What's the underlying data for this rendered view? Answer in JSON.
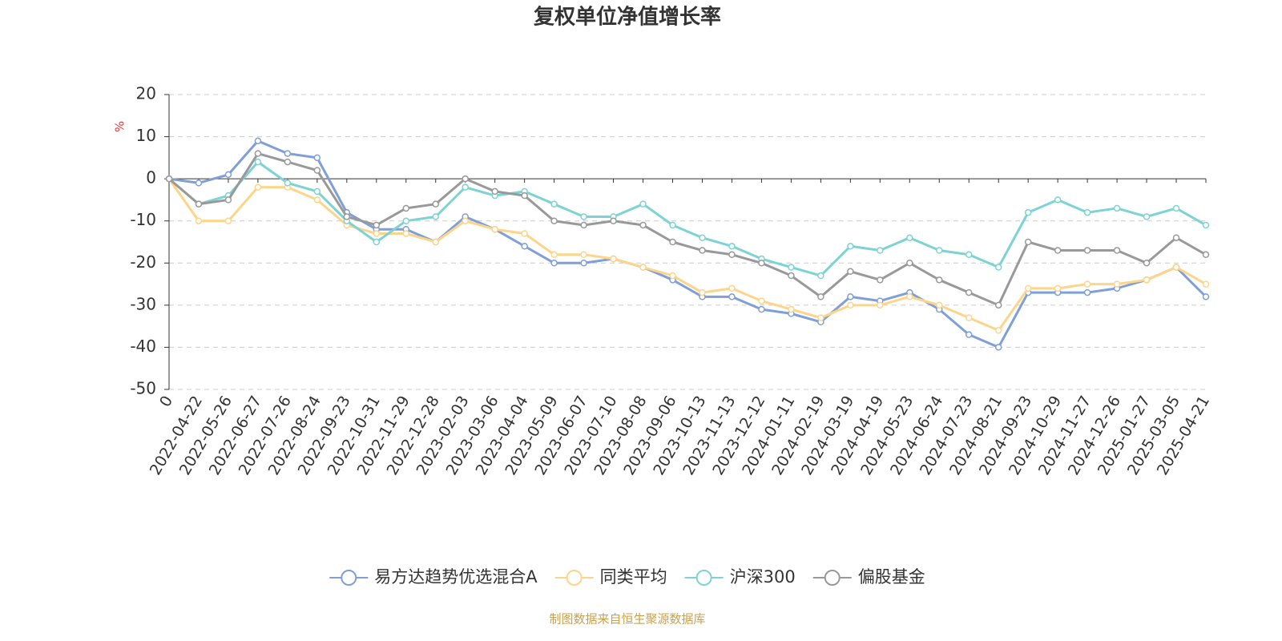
{
  "chart_data": {
    "type": "line",
    "title": "复权单位净值增长率",
    "y_label": "%",
    "source": "制图数据来自恒生聚源数据库",
    "categories": [
      "0",
      "2022-04-22",
      "2022-05-26",
      "2022-06-27",
      "2022-07-26",
      "2022-08-24",
      "2022-09-23",
      "2022-10-31",
      "2022-11-29",
      "2022-12-28",
      "2023-02-03",
      "2023-03-06",
      "2023-04-04",
      "2023-05-09",
      "2023-06-07",
      "2023-07-10",
      "2023-08-08",
      "2023-09-06",
      "2023-10-13",
      "2023-11-13",
      "2023-12-12",
      "2024-01-11",
      "2024-02-19",
      "2024-03-19",
      "2024-04-19",
      "2024-05-23",
      "2024-06-24",
      "2024-07-23",
      "2024-08-21",
      "2024-09-23",
      "2024-10-29",
      "2024-11-27",
      "2024-12-26",
      "2025-01-27",
      "2025-03-05",
      "2025-04-21"
    ],
    "series": [
      {
        "name": "易方达趋势优选混合A",
        "color": "#7f9fd6",
        "values": [
          0,
          -1,
          1,
          9,
          6,
          5,
          -8,
          -12,
          -12,
          -15,
          -9,
          -12,
          -16,
          -20,
          -20,
          -19,
          -21,
          -24,
          -28,
          -28,
          -31,
          -32,
          -34,
          -28,
          -29,
          -27,
          -31,
          -37,
          -40,
          -27,
          -27,
          -27,
          -26,
          -24,
          -21,
          -28
        ]
      },
      {
        "name": "同类平均",
        "color": "#fdd58a",
        "values": [
          0,
          -10,
          -10,
          -2,
          -2,
          -5,
          -11,
          -13,
          -13,
          -15,
          -10,
          -12,
          -13,
          -18,
          -18,
          -19,
          -21,
          -23,
          -27,
          -26,
          -29,
          -31,
          -33,
          -30,
          -30,
          -28,
          -30,
          -33,
          -36,
          -26,
          -26,
          -25,
          -25,
          -24,
          -21,
          -25
        ]
      },
      {
        "name": "沪深300",
        "color": "#7dd3d3",
        "values": [
          0,
          -6,
          -4,
          4,
          -1,
          -3,
          -10,
          -15,
          -10,
          -9,
          -2,
          -4,
          -3,
          -6,
          -9,
          -9,
          -6,
          -11,
          -14,
          -16,
          -19,
          -21,
          -23,
          -16,
          -17,
          -14,
          -17,
          -18,
          -21,
          -8,
          -5,
          -8,
          -7,
          -9,
          -7,
          -11
        ]
      },
      {
        "name": "偏股基金",
        "color": "#999999",
        "values": [
          0,
          -6,
          -5,
          6,
          4,
          2,
          -9,
          -11,
          -7,
          -6,
          0,
          -3,
          -4,
          -10,
          -11,
          -10,
          -11,
          -15,
          -17,
          -18,
          -20,
          -23,
          -28,
          -22,
          -24,
          -20,
          -24,
          -27,
          -30,
          -15,
          -17,
          -17,
          -17,
          -20,
          -14,
          -18
        ]
      }
    ],
    "ylim": [
      -50,
      20
    ],
    "yticks": [
      -50,
      -40,
      -30,
      -20,
      -10,
      0,
      10,
      20
    ],
    "grid": true,
    "legend": "bottom"
  }
}
